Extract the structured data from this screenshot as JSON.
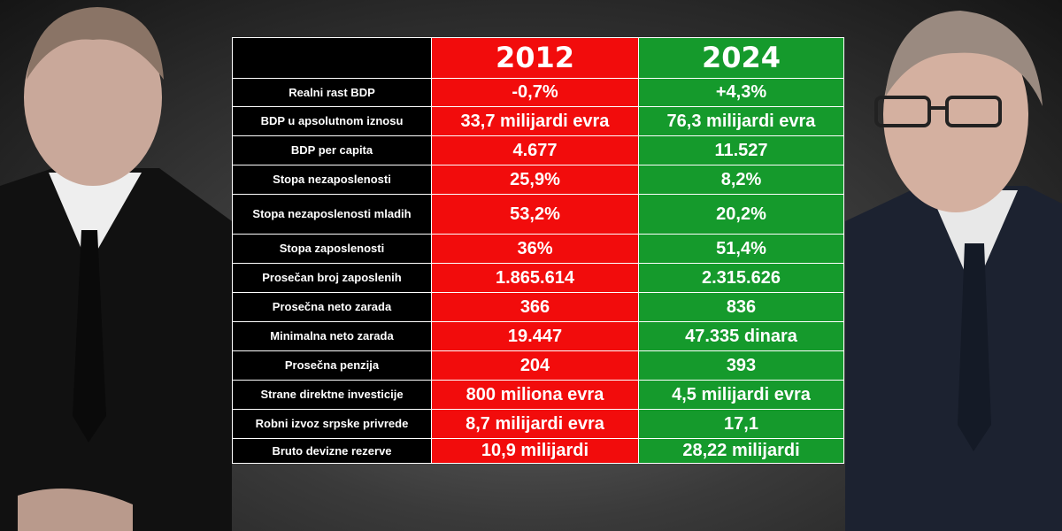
{
  "table": {
    "years": [
      "2012",
      "2024"
    ],
    "rows": [
      [
        "Realni rast BDP",
        "-0,7%",
        "+4,3%"
      ],
      [
        "BDP u apsolutnom iznosu",
        "33,7 milijardi evra",
        "76,3 milijardi evra"
      ],
      [
        "BDP per capita",
        "4.677",
        "11.527"
      ],
      [
        "Stopa nezaposlenosti",
        "25,9%",
        "8,2%"
      ],
      [
        "Stopa nezaposlenosti mladih",
        "53,2%",
        "20,2%"
      ],
      [
        "Stopa zaposlenosti",
        "36%",
        "51,4%"
      ],
      [
        "Prosečan broj zaposlenih",
        "1.865.614",
        "2.315.626"
      ],
      [
        "Prosečna neto zarada",
        "366",
        "836"
      ],
      [
        "Minimalna neto zarada",
        "19.447",
        "47.335 dinara"
      ],
      [
        "Prosečna penzija",
        "204",
        "393"
      ],
      [
        "Strane direktne investicije",
        "800 miliona evra",
        "4,5 milijardi evra"
      ],
      [
        "Robni izvoz srpske privrede",
        "8,7 milijardi evra",
        "17,1"
      ],
      [
        "Bruto devizne rezerve",
        "10,9 milijardi",
        "28,22 milijardi"
      ]
    ]
  }
}
